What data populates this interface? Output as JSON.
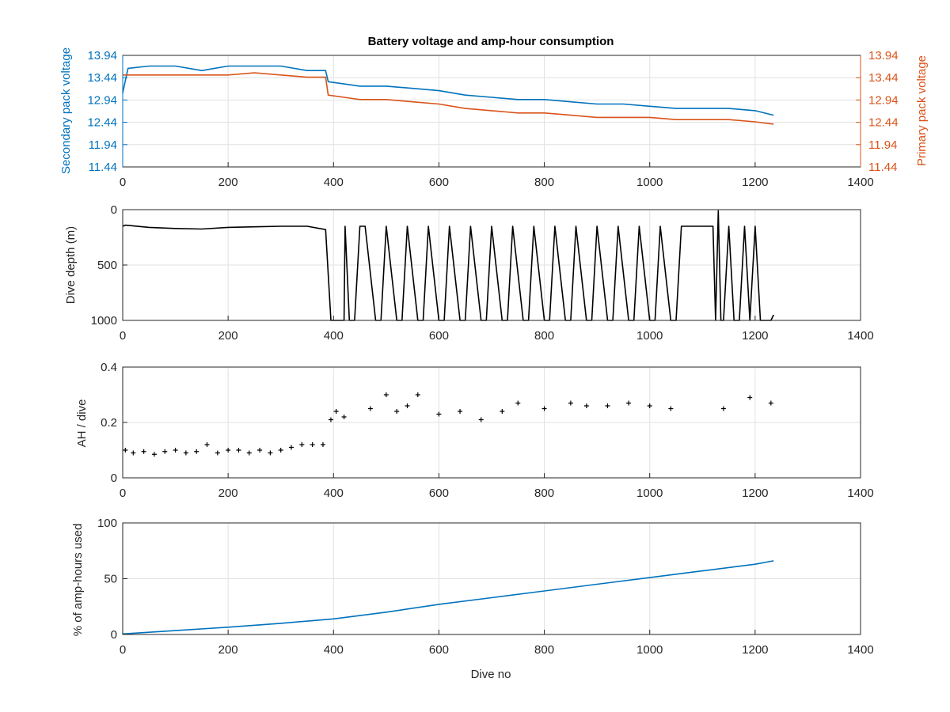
{
  "chart_data": [
    {
      "type": "line",
      "title": "Battery voltage and amp-hour consumption",
      "xlim": [
        0,
        1400
      ],
      "x_ticks": [
        0,
        200,
        400,
        600,
        800,
        1000,
        1200,
        1400
      ],
      "grid": true,
      "axes": {
        "left": {
          "label": "Secondary pack voltage",
          "color": "#0072BD",
          "ylim": [
            11.44,
            13.94
          ],
          "ticks": [
            11.44,
            11.94,
            12.44,
            12.94,
            13.44,
            13.94
          ]
        },
        "right": {
          "label": "Primary pack voltage",
          "color": "#D95319",
          "ylim": [
            11.44,
            13.94
          ],
          "ticks": [
            11.44,
            11.94,
            12.44,
            12.94,
            13.44,
            13.94
          ]
        }
      },
      "series": [
        {
          "axis": "left",
          "color": "#0072BD",
          "x": [
            0,
            10,
            50,
            100,
            150,
            200,
            250,
            300,
            350,
            385,
            390,
            420,
            450,
            500,
            550,
            600,
            650,
            700,
            750,
            800,
            850,
            900,
            950,
            1000,
            1050,
            1100,
            1150,
            1200,
            1235
          ],
          "y": [
            13.1,
            13.65,
            13.7,
            13.7,
            13.6,
            13.7,
            13.7,
            13.7,
            13.6,
            13.6,
            13.35,
            13.3,
            13.25,
            13.25,
            13.2,
            13.15,
            13.05,
            13.0,
            12.95,
            12.95,
            12.9,
            12.85,
            12.85,
            12.8,
            12.75,
            12.75,
            12.75,
            12.7,
            12.6
          ]
        },
        {
          "axis": "right",
          "color": "#D95319",
          "x": [
            0,
            10,
            50,
            100,
            150,
            200,
            250,
            300,
            350,
            385,
            390,
            420,
            450,
            500,
            550,
            600,
            650,
            700,
            750,
            800,
            850,
            900,
            950,
            1000,
            1050,
            1100,
            1150,
            1200,
            1235
          ],
          "y": [
            13.5,
            13.5,
            13.5,
            13.5,
            13.5,
            13.5,
            13.55,
            13.5,
            13.45,
            13.45,
            13.05,
            13.0,
            12.95,
            12.95,
            12.9,
            12.85,
            12.75,
            12.7,
            12.65,
            12.65,
            12.6,
            12.55,
            12.55,
            12.55,
            12.5,
            12.5,
            12.5,
            12.45,
            12.4
          ]
        }
      ]
    },
    {
      "type": "line",
      "xlim": [
        0,
        1400
      ],
      "x_ticks": [
        0,
        200,
        400,
        600,
        800,
        1000,
        1200,
        1400
      ],
      "ylabel": "Dive depth (m)",
      "ylim": [
        0,
        1000
      ],
      "y_ticks": [
        0,
        500,
        1000
      ],
      "y_reversed": true,
      "grid": true,
      "series": [
        {
          "color": "#000000",
          "x": [
            0,
            5,
            50,
            100,
            150,
            200,
            250,
            300,
            350,
            385,
            395,
            400,
            410,
            420,
            422,
            430,
            440,
            450,
            460,
            480,
            490,
            500,
            520,
            530,
            540,
            560,
            570,
            580,
            600,
            610,
            620,
            640,
            650,
            660,
            680,
            690,
            700,
            720,
            730,
            740,
            760,
            770,
            780,
            800,
            810,
            820,
            840,
            850,
            860,
            880,
            890,
            900,
            920,
            930,
            940,
            960,
            970,
            980,
            1000,
            1010,
            1020,
            1040,
            1050,
            1060,
            1080,
            1100,
            1120,
            1125,
            1130,
            1135,
            1140,
            1150,
            1160,
            1170,
            1180,
            1190,
            1200,
            1210,
            1220,
            1230,
            1235
          ],
          "y": [
            150,
            140,
            160,
            170,
            175,
            160,
            155,
            150,
            150,
            180,
            1000,
            1000,
            1000,
            1000,
            150,
            1000,
            1000,
            150,
            150,
            1000,
            1000,
            150,
            1000,
            1000,
            150,
            1000,
            1000,
            150,
            1000,
            1000,
            150,
            1000,
            1000,
            150,
            1000,
            1000,
            150,
            1000,
            1000,
            150,
            1000,
            1000,
            150,
            1000,
            1000,
            150,
            1000,
            1000,
            150,
            1000,
            1000,
            150,
            1000,
            1000,
            150,
            1000,
            1000,
            150,
            1000,
            1000,
            150,
            1000,
            1000,
            150,
            150,
            150,
            150,
            1000,
            10,
            1000,
            1000,
            150,
            1000,
            1000,
            150,
            1000,
            150,
            1000,
            1000,
            1000,
            950
          ]
        }
      ]
    },
    {
      "type": "scatter",
      "xlim": [
        0,
        1400
      ],
      "x_ticks": [
        0,
        200,
        400,
        600,
        800,
        1000,
        1200,
        1400
      ],
      "ylabel": "AH / dive",
      "ylim": [
        0,
        0.4
      ],
      "y_ticks": [
        0,
        0.2,
        0.4
      ],
      "grid": true,
      "marker": "+",
      "series": [
        {
          "color": "#000000",
          "x": [
            5,
            20,
            40,
            60,
            80,
            100,
            120,
            140,
            160,
            180,
            200,
            220,
            240,
            260,
            280,
            300,
            320,
            340,
            360,
            380,
            395,
            405,
            420,
            470,
            500,
            520,
            540,
            560,
            600,
            640,
            680,
            720,
            750,
            800,
            850,
            880,
            920,
            960,
            1000,
            1040,
            1140,
            1190,
            1230
          ],
          "y": [
            0.1,
            0.09,
            0.095,
            0.085,
            0.095,
            0.1,
            0.09,
            0.095,
            0.12,
            0.09,
            0.1,
            0.1,
            0.09,
            0.1,
            0.09,
            0.1,
            0.11,
            0.12,
            0.12,
            0.12,
            0.21,
            0.24,
            0.22,
            0.25,
            0.3,
            0.24,
            0.26,
            0.3,
            0.23,
            0.24,
            0.21,
            0.24,
            0.27,
            0.25,
            0.27,
            0.26,
            0.26,
            0.27,
            0.26,
            0.25,
            0.25,
            0.29,
            0.27
          ]
        }
      ]
    },
    {
      "type": "line",
      "xlim": [
        0,
        1400
      ],
      "x_ticks": [
        0,
        200,
        400,
        600,
        800,
        1000,
        1200,
        1400
      ],
      "xlabel": "Dive no",
      "ylabel": "% of amp-hours used",
      "ylim": [
        0,
        100
      ],
      "y_ticks": [
        0,
        50,
        100
      ],
      "grid": true,
      "series": [
        {
          "color": "#0072BD",
          "x": [
            0,
            100,
            200,
            300,
            400,
            500,
            600,
            700,
            800,
            900,
            1000,
            1100,
            1200,
            1235
          ],
          "y": [
            0.5,
            3.5,
            6.5,
            10,
            14,
            20,
            27,
            33,
            39,
            45,
            51,
            57,
            63,
            66
          ]
        }
      ]
    }
  ]
}
